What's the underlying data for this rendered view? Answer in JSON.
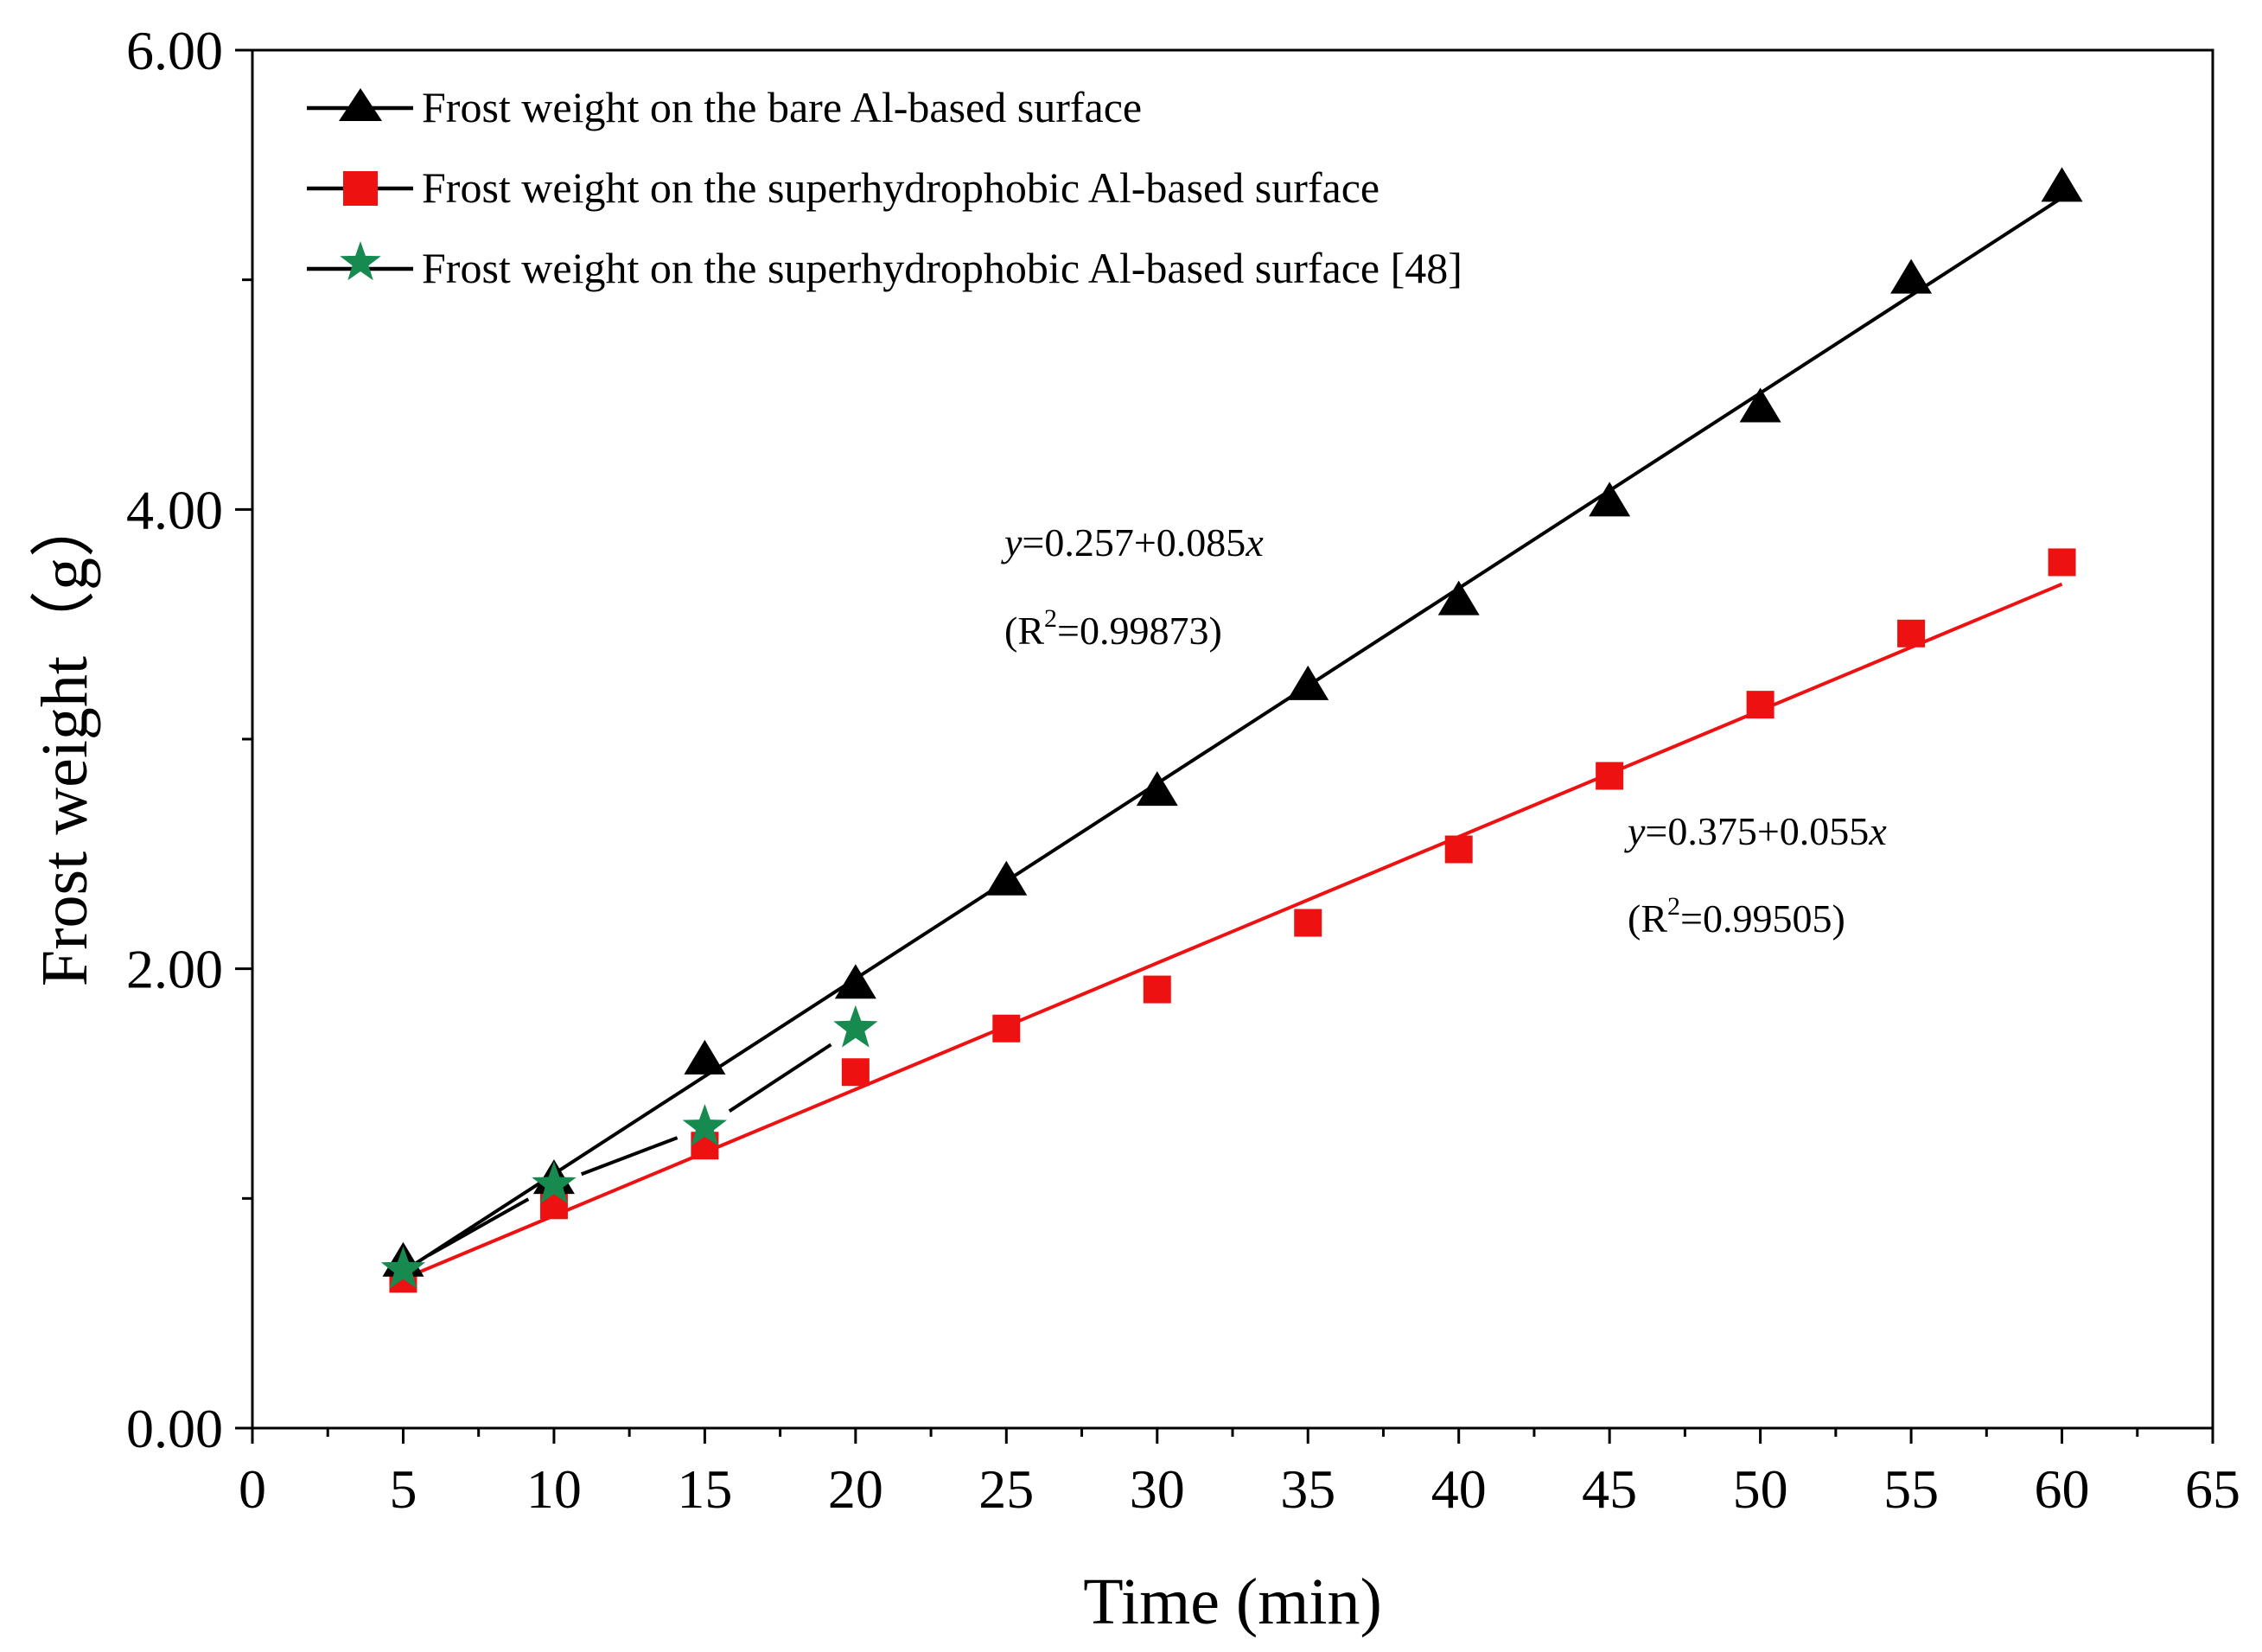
{
  "chart_data": {
    "type": "scatter",
    "xlabel": "Time (min)",
    "ylabel": "Frost weight（g）",
    "xlim": [
      0,
      65
    ],
    "ylim": [
      0,
      6
    ],
    "xticks": [
      0,
      5,
      10,
      15,
      20,
      25,
      30,
      35,
      40,
      45,
      50,
      55,
      60,
      65
    ],
    "xtick_labels": [
      "0",
      "5",
      "10",
      "15",
      "20",
      "25",
      "30",
      "35",
      "40",
      "45",
      "50",
      "55",
      "60",
      "65"
    ],
    "yticks": [
      0,
      2,
      4,
      6
    ],
    "ytick_labels": [
      "0.00",
      "2.00",
      "4.00",
      "6.00"
    ],
    "y_minor_ticks": [
      1,
      3,
      5
    ],
    "grid": false,
    "legend_position": "top-left",
    "series": [
      {
        "name": "Frost weight on the bare Al-based surface",
        "marker": "triangle",
        "color": "#000000",
        "x": [
          5,
          10,
          15,
          20,
          25,
          30,
          35,
          40,
          45,
          50,
          55,
          60
        ],
        "y": [
          0.72,
          1.08,
          1.6,
          1.93,
          2.38,
          2.77,
          3.23,
          3.6,
          4.03,
          4.44,
          5.0,
          5.4
        ],
        "fit": {
          "x": [
            5,
            60
          ],
          "y": [
            0.682,
            5.357
          ]
        }
      },
      {
        "name": "Frost weight on the superhydrophobic Al-based surface",
        "marker": "square",
        "color": "#ee1111",
        "x": [
          5,
          10,
          15,
          20,
          25,
          30,
          35,
          40,
          45,
          50,
          55,
          60
        ],
        "y": [
          0.65,
          0.97,
          1.23,
          1.55,
          1.74,
          1.91,
          2.2,
          2.52,
          2.84,
          3.15,
          3.46,
          3.77
        ],
        "fit": {
          "x": [
            5,
            60
          ],
          "y": [
            0.65,
            3.675
          ]
        }
      },
      {
        "name": "Frost weight on the superhydrophobic Al-based surface [48]",
        "marker": "star",
        "color": "#178a50",
        "x": [
          5,
          10,
          15,
          20
        ],
        "y": [
          0.69,
          1.06,
          1.31,
          1.74
        ],
        "connected": true
      }
    ],
    "annotations": [
      {
        "text": "y=0.257+0.085x",
        "r2": "(R2=0.99873)",
        "x": 25,
        "y": 3.85
      },
      {
        "text": "y=0.375+0.055x",
        "r2": "(R2=0.99505)",
        "x": 45,
        "y": 2.57
      }
    ]
  },
  "legend": {
    "items": [
      "Frost weight on the bare Al-based surface",
      "Frost weight on the superhydrophobic Al-based surface",
      "Frost weight on the superhydrophobic Al-based surface [48]"
    ]
  },
  "annotations": {
    "fit_black_eq_prefix": "y",
    "fit_black_eq_mid": "=0.257+0.085",
    "fit_black_eq_var": "x",
    "fit_black_r2_open": "(R",
    "fit_black_r2_sup": "2",
    "fit_black_r2_rest": "=0.99873)",
    "fit_red_eq_prefix": "y",
    "fit_red_eq_mid": "=0.375+0.055",
    "fit_red_eq_var": "x",
    "fit_red_r2_open": "(R",
    "fit_red_r2_sup": "2",
    "fit_red_r2_rest": "=0.99505)"
  }
}
